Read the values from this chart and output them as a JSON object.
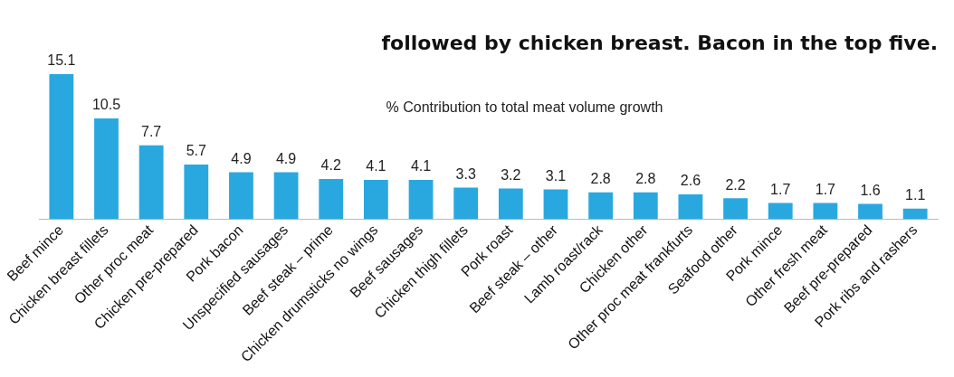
{
  "chart_data": {
    "type": "bar",
    "title": "followed by chicken breast. Bacon in the top five.",
    "annotations": [
      "% Contribution to total meat volume growth"
    ],
    "categories": [
      "Beef mince",
      "Chicken breast fillets",
      "Other proc meat",
      "Chicken pre-prepared",
      "Pork bacon",
      "Unspecified sausages",
      "Beef steak – prime",
      "Chicken drumsticks no wings",
      "Beef sausages",
      "Chicken thigh fillets",
      "Pork roast",
      "Beef steak – other",
      "Lamb roast/rack",
      "Chicken other",
      "Other proc meat frankfurts",
      "Seafood other",
      "Pork mince",
      "Other fresh meat",
      "Beef pre-prepared",
      "Pork ribs and rashers"
    ],
    "values": [
      15.1,
      10.5,
      7.7,
      5.7,
      4.9,
      4.9,
      4.2,
      4.1,
      4.1,
      3.3,
      3.2,
      3.1,
      2.8,
      2.8,
      2.6,
      2.2,
      1.7,
      1.7,
      1.6,
      1.1
    ],
    "color": "#29a8e0",
    "data_labels": true,
    "grid": false,
    "legend": false
  }
}
